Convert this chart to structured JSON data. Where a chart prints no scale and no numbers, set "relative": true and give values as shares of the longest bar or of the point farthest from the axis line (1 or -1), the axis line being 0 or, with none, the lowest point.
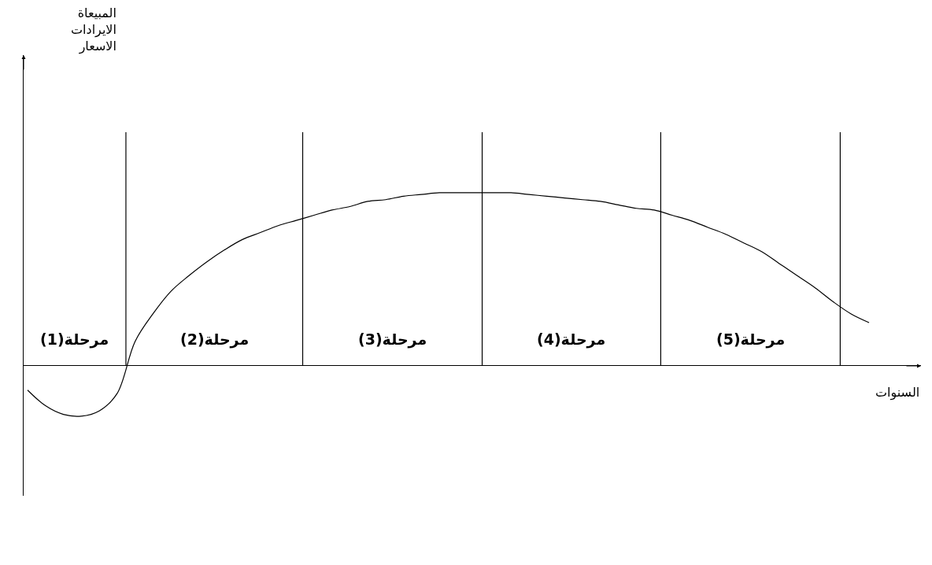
{
  "chart_data": {
    "type": "line",
    "relative": true,
    "color": "#000000",
    "marker": "none",
    "legend": false,
    "tick_labels": false,
    "xlabel": "السنوات",
    "categories": [
      null,
      null,
      null,
      null,
      null,
      null,
      null,
      null,
      null,
      null,
      null,
      null,
      null,
      null,
      null,
      null,
      null,
      null,
      null,
      null,
      null,
      null,
      null,
      null,
      null,
      null,
      null,
      null,
      null,
      null,
      null,
      null,
      null,
      null,
      null,
      null,
      null,
      null,
      null,
      null,
      null,
      null,
      null,
      null,
      null,
      null,
      null,
      null
    ],
    "values": [
      -0.14,
      -0.23,
      -0.28,
      -0.29,
      -0.26,
      -0.16,
      0.14,
      0.3,
      0.43,
      0.52,
      0.6,
      0.67,
      0.73,
      0.77,
      0.81,
      0.84,
      0.87,
      0.9,
      0.92,
      0.95,
      0.96,
      0.98,
      0.99,
      1.0,
      1.0,
      1.0,
      1.0,
      1.0,
      0.99,
      0.98,
      0.97,
      0.96,
      0.95,
      0.93,
      0.91,
      0.9,
      0.87,
      0.84,
      0.8,
      0.76,
      0.71,
      0.66,
      0.59,
      0.52,
      0.45,
      0.37,
      0.3,
      0.25
    ],
    "annotations": [
      "مرحلة(1)",
      "مرحلة(2)",
      "مرحلة(3)",
      "مرحلة(4)",
      "مرحلة(5)",
      "المبيعاة\nالايرادات\nالاسعار"
    ]
  }
}
